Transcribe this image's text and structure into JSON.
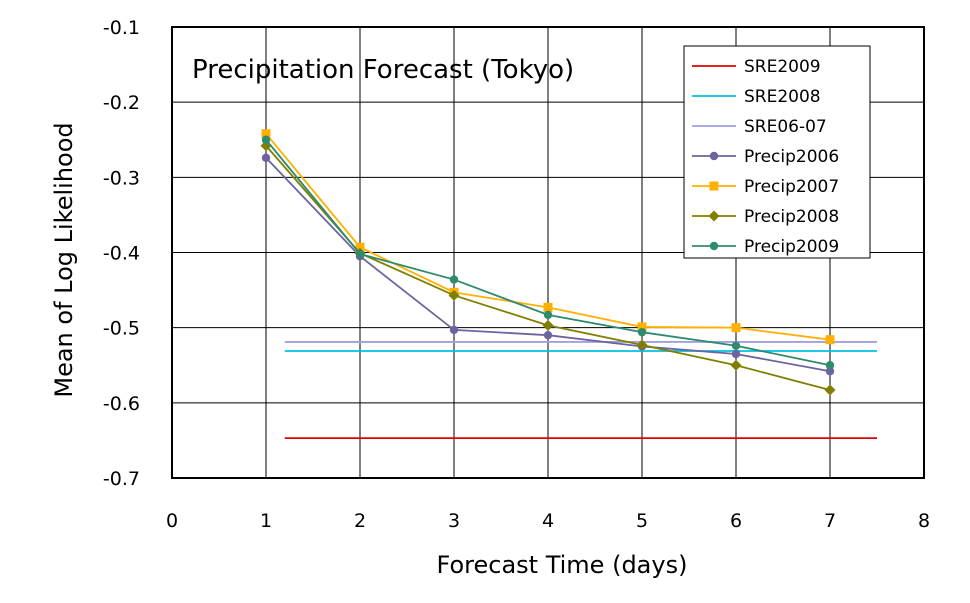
{
  "chart_data": {
    "type": "line",
    "title": "Precipitation Forecast (Tokyo)",
    "xlabel": "Forecast Time (days)",
    "ylabel": "Mean of Log Likelihood",
    "xlim": [
      0,
      8
    ],
    "ylim": [
      -0.7,
      -0.1
    ],
    "xticks": [
      0,
      1,
      2,
      3,
      4,
      5,
      6,
      7,
      8
    ],
    "xtick_labels": [
      "0",
      "1",
      "2",
      "3",
      "4",
      "5",
      "6",
      "7",
      "8"
    ],
    "yticks": [
      -0.1,
      -0.2,
      -0.3,
      -0.4,
      -0.5,
      -0.6,
      -0.7
    ],
    "ytick_labels": [
      "-0.1",
      "-0.2",
      "-0.3",
      "-0.4",
      "-0.5",
      "-0.6",
      "-0.7"
    ],
    "grid": true,
    "legend_position": "top-right",
    "series": [
      {
        "name": "SRE2009",
        "color": "#e00000",
        "marker": "none",
        "x": [
          1.2,
          7.5
        ],
        "y": [
          -0.647,
          -0.647
        ]
      },
      {
        "name": "SRE2008",
        "color": "#00c0e0",
        "marker": "none",
        "x": [
          1.2,
          7.5
        ],
        "y": [
          -0.531,
          -0.531
        ]
      },
      {
        "name": "SRE06-07",
        "color": "#a0a0e0",
        "marker": "none",
        "x": [
          1.2,
          7.5
        ],
        "y": [
          -0.519,
          -0.519
        ]
      },
      {
        "name": "Precip2006",
        "color": "#6a64a0",
        "marker": "circle",
        "x": [
          1,
          2,
          3,
          4,
          5,
          6,
          7
        ],
        "y": [
          -0.274,
          -0.405,
          -0.503,
          -0.51,
          -0.525,
          -0.535,
          -0.558
        ]
      },
      {
        "name": "Precip2007",
        "color": "#ffb000",
        "marker": "square",
        "x": [
          1,
          2,
          3,
          4,
          5,
          6,
          7
        ],
        "y": [
          -0.242,
          -0.393,
          -0.453,
          -0.473,
          -0.499,
          -0.5,
          -0.516
        ]
      },
      {
        "name": "Precip2008",
        "color": "#808000",
        "marker": "diamond",
        "x": [
          1,
          2,
          3,
          4,
          5,
          6,
          7
        ],
        "y": [
          -0.258,
          -0.401,
          -0.457,
          -0.497,
          -0.523,
          -0.55,
          -0.583
        ]
      },
      {
        "name": "Precip2009",
        "color": "#2e8b6e",
        "marker": "circle",
        "x": [
          1,
          2,
          3,
          4,
          5,
          6,
          7
        ],
        "y": [
          -0.25,
          -0.402,
          -0.436,
          -0.483,
          -0.506,
          -0.524,
          -0.55
        ]
      }
    ]
  }
}
